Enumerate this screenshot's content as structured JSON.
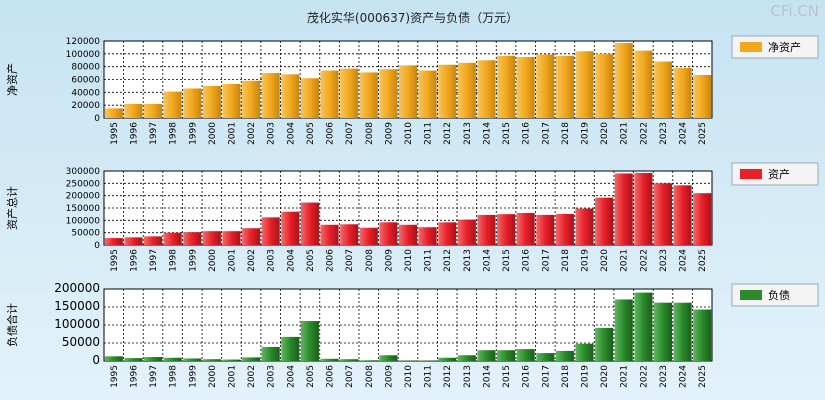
{
  "title": "茂化实华(000637)资产与负债（万元）",
  "watermark": "CFi.CN",
  "chart_data": [
    {
      "type": "bar",
      "series": [
        {
          "name": "净资产",
          "values": [
            15000,
            22000,
            22000,
            41000,
            46000,
            50000,
            53000,
            58000,
            70000,
            68000,
            62000,
            74000,
            77000,
            71000,
            76000,
            82000,
            74000,
            83000,
            86000,
            90000,
            97000,
            95000,
            99000,
            97000,
            104000,
            100000,
            117000,
            105000,
            88000,
            78000,
            67000
          ]
        }
      ],
      "ylabel": "净资产",
      "ylim": [
        0,
        120000
      ],
      "yticks": [
        0,
        20000,
        40000,
        60000,
        80000,
        100000,
        120000
      ],
      "color": "#f2a81e",
      "grid": true,
      "legend": "right"
    },
    {
      "type": "bar",
      "series": [
        {
          "name": "资产",
          "values": [
            28000,
            31000,
            35000,
            50000,
            52000,
            56000,
            56000,
            68000,
            112000,
            135000,
            172000,
            82000,
            84000,
            70000,
            92000,
            82000,
            72000,
            92000,
            103000,
            122000,
            125000,
            130000,
            122000,
            126000,
            148000,
            192000,
            290000,
            292000,
            250000,
            242000,
            210000
          ]
        }
      ],
      "ylabel": "资产总计",
      "ylim": [
        0,
        300000
      ],
      "yticks": [
        0,
        50000,
        100000,
        150000,
        200000,
        250000,
        300000
      ],
      "color": "#e8202a",
      "grid": true,
      "legend": "right"
    },
    {
      "type": "bar",
      "series": [
        {
          "name": "负债",
          "values": [
            13000,
            8000,
            11000,
            9000,
            7000,
            5000,
            4000,
            10000,
            39000,
            67000,
            111000,
            6000,
            5000,
            2000,
            16000,
            1000,
            1000,
            9000,
            16000,
            30000,
            30000,
            33000,
            22000,
            28000,
            48000,
            92000,
            171000,
            190000,
            162000,
            162000,
            143000
          ]
        }
      ],
      "ylabel": "负债合计",
      "ylim": [
        0,
        200000
      ],
      "yticks": [
        0,
        50000,
        100000,
        150000,
        200000
      ],
      "color": "#2b8a2b",
      "grid": true,
      "legend": "right"
    }
  ],
  "categories": [
    "1995",
    "1996",
    "1997",
    "1998",
    "1999",
    "2000",
    "2001",
    "2002",
    "2003",
    "2004",
    "2005",
    "2006",
    "2007",
    "2008",
    "2009",
    "2010",
    "2011",
    "2012",
    "2013",
    "2014",
    "2015",
    "2016",
    "2017",
    "2018",
    "2019",
    "2020",
    "2021",
    "2022",
    "2023",
    "2024",
    "2025"
  ]
}
